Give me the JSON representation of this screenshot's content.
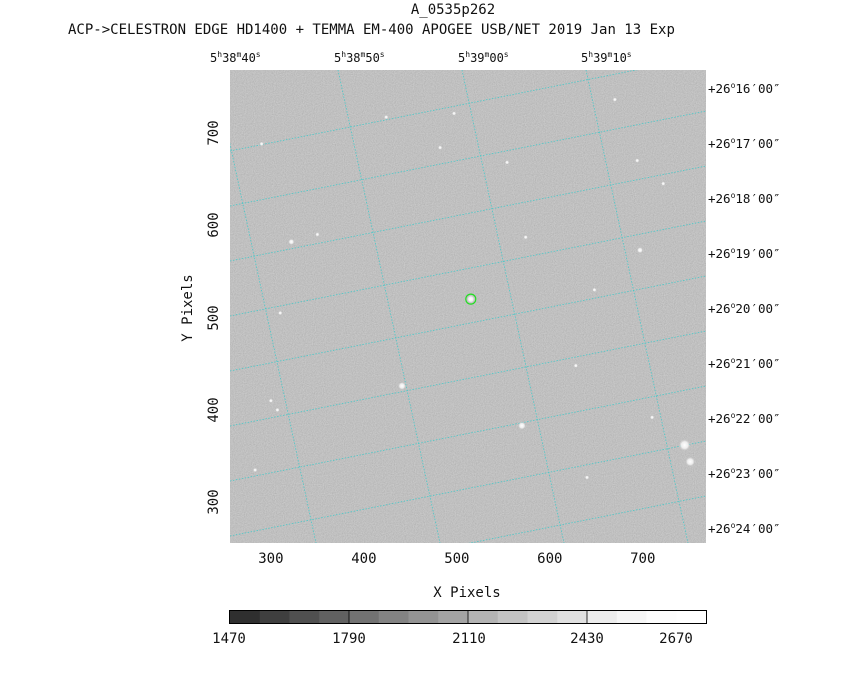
{
  "header": {
    "title": "A_0535p262",
    "subtitle": "ACP->CELESTRON EDGE HD1400 + TEMMA EM-400 APOGEE USB/NET   2019 Jan 13    Exp"
  },
  "ra_labels": [
    {
      "h": "5",
      "m": "38",
      "s": "40"
    },
    {
      "h": "5",
      "m": "38",
      "s": "50"
    },
    {
      "h": "5",
      "m": "39",
      "s": "00"
    },
    {
      "h": "5",
      "m": "39",
      "s": "10"
    }
  ],
  "dec_labels": [
    {
      "sign": "+",
      "deg": "26",
      "min": "16",
      "sec": "00"
    },
    {
      "sign": "+",
      "deg": "26",
      "min": "17",
      "sec": "00"
    },
    {
      "sign": "+",
      "deg": "26",
      "min": "18",
      "sec": "00"
    },
    {
      "sign": "+",
      "deg": "26",
      "min": "19",
      "sec": "00"
    },
    {
      "sign": "+",
      "deg": "26",
      "min": "20",
      "sec": "00"
    },
    {
      "sign": "+",
      "deg": "26",
      "min": "21",
      "sec": "00"
    },
    {
      "sign": "+",
      "deg": "26",
      "min": "22",
      "sec": "00"
    },
    {
      "sign": "+",
      "deg": "26",
      "min": "23",
      "sec": "00"
    },
    {
      "sign": "+",
      "deg": "26",
      "min": "24",
      "sec": "00"
    }
  ],
  "x_axis": {
    "label": "X Pixels",
    "ticks": [
      "300",
      "400",
      "500",
      "600",
      "700"
    ],
    "range": [
      256,
      768
    ]
  },
  "y_axis": {
    "label": "Y Pixels",
    "ticks": [
      "300",
      "400",
      "500",
      "600",
      "700"
    ],
    "range": [
      256,
      768
    ]
  },
  "colorbar": {
    "labels": [
      "1470",
      "1790",
      "2110",
      "2430",
      "2670"
    ],
    "shades": [
      "#2f2f2f",
      "#3f3f3f",
      "#505050",
      "#616161",
      "#727272",
      "#838383",
      "#939393",
      "#a3a3a3",
      "#b3b3b3",
      "#c3c3c3",
      "#d2d2d2",
      "#e0e0e0",
      "#ececec",
      "#f6f6f6",
      "#fdfdfd",
      "#ffffff"
    ]
  },
  "colors": {
    "sky": "#8f8f8f",
    "grid": "#49c8c8",
    "target_marker": "#22dd22"
  },
  "stars": [
    {
      "x": 515,
      "y": 520,
      "b": 3
    },
    {
      "x": 745,
      "y": 362,
      "b": 5
    },
    {
      "x": 751,
      "y": 344,
      "b": 4
    },
    {
      "x": 441,
      "y": 426,
      "b": 3
    },
    {
      "x": 570,
      "y": 383,
      "b": 3
    },
    {
      "x": 697,
      "y": 573,
      "b": 2
    },
    {
      "x": 322,
      "y": 582,
      "b": 2
    },
    {
      "x": 424,
      "y": 717,
      "b": 1
    },
    {
      "x": 497,
      "y": 721,
      "b": 1
    },
    {
      "x": 482,
      "y": 684,
      "b": 1
    },
    {
      "x": 554,
      "y": 668,
      "b": 1
    },
    {
      "x": 628,
      "y": 448,
      "b": 1
    },
    {
      "x": 300,
      "y": 410,
      "b": 1
    },
    {
      "x": 307,
      "y": 400,
      "b": 1
    },
    {
      "x": 350,
      "y": 590,
      "b": 1
    },
    {
      "x": 710,
      "y": 392,
      "b": 1
    },
    {
      "x": 640,
      "y": 327,
      "b": 1
    },
    {
      "x": 670,
      "y": 736,
      "b": 1
    },
    {
      "x": 290,
      "y": 688,
      "b": 1
    },
    {
      "x": 283,
      "y": 335,
      "b": 1
    },
    {
      "x": 694,
      "y": 670,
      "b": 1
    },
    {
      "x": 310,
      "y": 505,
      "b": 1
    },
    {
      "x": 574,
      "y": 587,
      "b": 1
    },
    {
      "x": 648,
      "y": 530,
      "b": 1
    },
    {
      "x": 722,
      "y": 645,
      "b": 1
    }
  ],
  "target": {
    "x": 515,
    "y": 520
  }
}
